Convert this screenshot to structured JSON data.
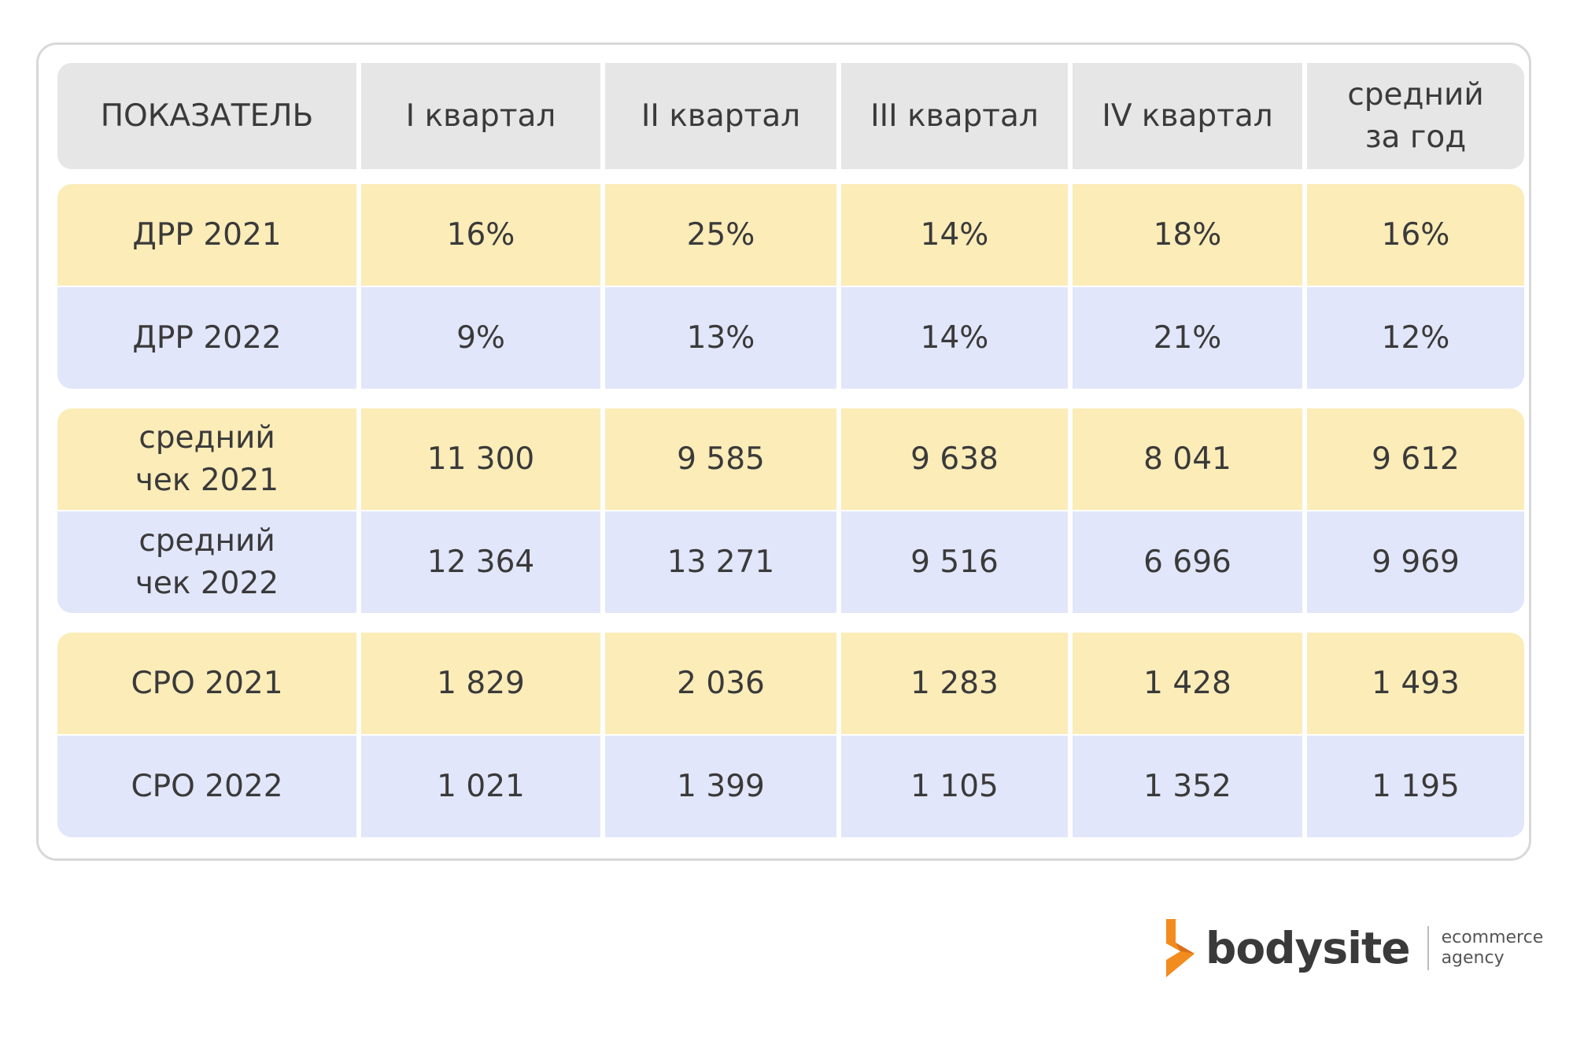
{
  "header": [
    "ПОКАЗАТЕЛЬ",
    "I квартал",
    "II квартал",
    "III квартал",
    "IV квартал",
    "средний\nза год"
  ],
  "rows": [
    {
      "label": "ДРР 2021",
      "values": [
        "16%",
        "25%",
        "14%",
        "18%",
        "16%"
      ]
    },
    {
      "label": "ДРР 2022",
      "values": [
        "9%",
        "13%",
        "14%",
        "21%",
        "12%"
      ]
    },
    {
      "label": "средний\nчек 2021",
      "values": [
        "11 300",
        "9 585",
        "9 638",
        "8 041",
        "9 612"
      ]
    },
    {
      "label": "средний\nчек 2022",
      "values": [
        "12 364",
        "13 271",
        "9 516",
        "6 696",
        "9 969"
      ]
    },
    {
      "label": "СРО 2021",
      "values": [
        "1 829",
        "2 036",
        "1 283",
        "1 428",
        "1 493"
      ]
    },
    {
      "label": "СРО 2022",
      "values": [
        "1 021",
        "1 399",
        "1 105",
        "1 352",
        "1 195"
      ]
    }
  ],
  "colors": {
    "header_bg": "#e6e6e6",
    "row_2021_bg": "#fbecb8",
    "row_2022_bg": "#e2e6fa",
    "logo_orange": "#f28c1e"
  },
  "logo": {
    "name": "bodysite",
    "tagline_line1": "ecommerce",
    "tagline_line2": "agency"
  }
}
